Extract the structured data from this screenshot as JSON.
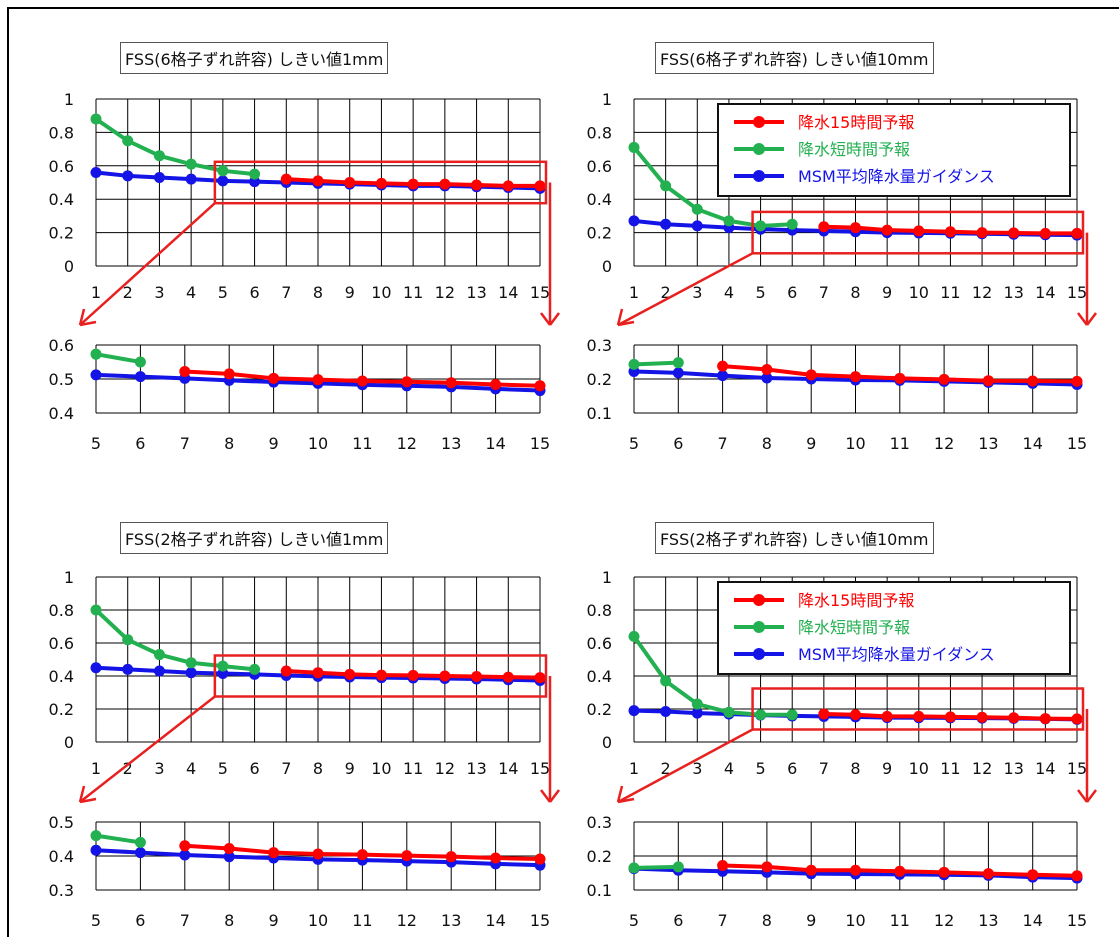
{
  "colors": {
    "red": "#ff0000",
    "green": "#22b050",
    "blue": "#1414e6",
    "zoom": "#e82020"
  },
  "legend_entries": [
    "降水15時間予報",
    "降水短時間予報",
    "MSM平均降水量ガイダンス"
  ],
  "chart_data": [
    {
      "type": "line",
      "title": "FSS(6格子ずれ許容) しきい値1mm",
      "main": {
        "x": [
          1,
          2,
          3,
          4,
          5,
          6,
          7,
          8,
          9,
          10,
          11,
          12,
          13,
          14,
          15
        ],
        "ylim": [
          0,
          1
        ],
        "yticks": [
          "0",
          "0.2",
          "0.4",
          "0.6",
          "0.8",
          "1"
        ],
        "xticks": [
          "1",
          "2",
          "3",
          "4",
          "5",
          "6",
          "7",
          "8",
          "9",
          "10",
          "11",
          "12",
          "13",
          "14",
          "15"
        ],
        "grid": true,
        "legend": null,
        "series": [
          {
            "name": "降水15時間予報",
            "color": "red",
            "x": [
              7,
              8,
              9,
              10,
              11,
              12,
              13,
              14,
              15
            ],
            "values": [
              0.52,
              0.51,
              0.5,
              0.495,
              0.49,
              0.49,
              0.485,
              0.48,
              0.48
            ]
          },
          {
            "name": "降水短時間予報",
            "color": "green",
            "x": [
              1,
              2,
              3,
              4,
              5,
              6
            ],
            "values": [
              0.88,
              0.75,
              0.66,
              0.61,
              0.57,
              0.55
            ]
          },
          {
            "name": "MSM平均降水量ガイダンス",
            "color": "blue",
            "x": [
              1,
              2,
              3,
              4,
              5,
              6,
              7,
              8,
              9,
              10,
              11,
              12,
              13,
              14,
              15
            ],
            "values": [
              0.56,
              0.54,
              0.53,
              0.52,
              0.51,
              0.505,
              0.5,
              0.495,
              0.49,
              0.485,
              0.48,
              0.48,
              0.475,
              0.47,
              0.465
            ]
          }
        ]
      },
      "zoom": {
        "x": [
          5,
          6,
          7,
          8,
          9,
          10,
          11,
          12,
          13,
          14,
          15
        ],
        "ylim": [
          0.4,
          0.6
        ],
        "yticks": [
          "0.4",
          "0.5",
          "0.6"
        ],
        "xticks": [
          "5",
          "6",
          "7",
          "8",
          "9",
          "10",
          "11",
          "12",
          "13",
          "14",
          "15"
        ],
        "series": [
          {
            "name": "降水15時間予報",
            "color": "red",
            "x": [
              7,
              8,
              9,
              10,
              11,
              12,
              13,
              14,
              15
            ],
            "values": [
              0.522,
              0.515,
              0.502,
              0.498,
              0.494,
              0.492,
              0.489,
              0.484,
              0.48
            ]
          },
          {
            "name": "降水短時間予報",
            "color": "green",
            "x": [
              5,
              6
            ],
            "values": [
              0.573,
              0.55
            ]
          },
          {
            "name": "MSM平均降水量ガイダンス",
            "color": "blue",
            "x": [
              5,
              6,
              7,
              8,
              9,
              10,
              11,
              12,
              13,
              14,
              15
            ],
            "values": [
              0.512,
              0.507,
              0.502,
              0.496,
              0.491,
              0.487,
              0.483,
              0.48,
              0.477,
              0.471,
              0.466
            ]
          }
        ]
      }
    },
    {
      "type": "line",
      "title": "FSS(6格子ずれ許容) しきい値10mm",
      "main": {
        "x": [
          1,
          2,
          3,
          4,
          5,
          6,
          7,
          8,
          9,
          10,
          11,
          12,
          13,
          14,
          15
        ],
        "ylim": [
          0,
          1
        ],
        "yticks": [
          "0",
          "0.2",
          "0.4",
          "0.6",
          "0.8",
          "1"
        ],
        "xticks": [
          "1",
          "2",
          "3",
          "4",
          "5",
          "6",
          "7",
          "8",
          "9",
          "10",
          "11",
          "12",
          "13",
          "14",
          "15"
        ],
        "grid": true,
        "legend": "top-right",
        "series": [
          {
            "name": "降水15時間予報",
            "color": "red",
            "x": [
              7,
              8,
              9,
              10,
              11,
              12,
              13,
              14,
              15
            ],
            "values": [
              0.235,
              0.23,
              0.215,
              0.21,
              0.205,
              0.2,
              0.198,
              0.195,
              0.195
            ]
          },
          {
            "name": "降水短時間予報",
            "color": "green",
            "x": [
              1,
              2,
              3,
              4,
              5,
              6
            ],
            "values": [
              0.71,
              0.48,
              0.34,
              0.27,
              0.24,
              0.25
            ]
          },
          {
            "name": "MSM平均降水量ガイダンス",
            "color": "blue",
            "x": [
              1,
              2,
              3,
              4,
              5,
              6,
              7,
              8,
              9,
              10,
              11,
              12,
              13,
              14,
              15
            ],
            "values": [
              0.27,
              0.25,
              0.24,
              0.23,
              0.22,
              0.215,
              0.21,
              0.205,
              0.2,
              0.198,
              0.196,
              0.193,
              0.19,
              0.187,
              0.185
            ]
          }
        ]
      },
      "zoom": {
        "x": [
          5,
          6,
          7,
          8,
          9,
          10,
          11,
          12,
          13,
          14,
          15
        ],
        "ylim": [
          0.1,
          0.3
        ],
        "yticks": [
          "0.1",
          "0.2",
          "0.3"
        ],
        "xticks": [
          "5",
          "6",
          "7",
          "8",
          "9",
          "10",
          "11",
          "12",
          "13",
          "14",
          "15"
        ],
        "series": [
          {
            "name": "降水15時間予報",
            "color": "red",
            "x": [
              7,
              8,
              9,
              10,
              11,
              12,
              13,
              14,
              15
            ],
            "values": [
              0.238,
              0.228,
              0.212,
              0.207,
              0.202,
              0.199,
              0.195,
              0.194,
              0.193
            ]
          },
          {
            "name": "降水短時間予報",
            "color": "green",
            "x": [
              5,
              6
            ],
            "values": [
              0.243,
              0.248
            ]
          },
          {
            "name": "MSM平均降水量ガイダンス",
            "color": "blue",
            "x": [
              5,
              6,
              7,
              8,
              9,
              10,
              11,
              12,
              13,
              14,
              15
            ],
            "values": [
              0.222,
              0.218,
              0.21,
              0.203,
              0.2,
              0.197,
              0.196,
              0.193,
              0.19,
              0.187,
              0.184
            ]
          }
        ]
      }
    },
    {
      "type": "line",
      "title": "FSS(2格子ずれ許容) しきい値1mm",
      "main": {
        "x": [
          1,
          2,
          3,
          4,
          5,
          6,
          7,
          8,
          9,
          10,
          11,
          12,
          13,
          14,
          15
        ],
        "ylim": [
          0,
          1
        ],
        "yticks": [
          "0",
          "0.2",
          "0.4",
          "0.6",
          "0.8",
          "1"
        ],
        "xticks": [
          "1",
          "2",
          "3",
          "4",
          "5",
          "6",
          "7",
          "8",
          "9",
          "10",
          "11",
          "12",
          "13",
          "14",
          "15"
        ],
        "grid": true,
        "legend": null,
        "series": [
          {
            "name": "降水15時間予報",
            "color": "red",
            "x": [
              7,
              8,
              9,
              10,
              11,
              12,
              13,
              14,
              15
            ],
            "values": [
              0.43,
              0.42,
              0.41,
              0.405,
              0.404,
              0.4,
              0.397,
              0.393,
              0.39
            ]
          },
          {
            "name": "降水短時間予報",
            "color": "green",
            "x": [
              1,
              2,
              3,
              4,
              5,
              6
            ],
            "values": [
              0.8,
              0.62,
              0.53,
              0.48,
              0.46,
              0.44
            ]
          },
          {
            "name": "MSM平均降水量ガイダンス",
            "color": "blue",
            "x": [
              1,
              2,
              3,
              4,
              5,
              6,
              7,
              8,
              9,
              10,
              11,
              12,
              13,
              14,
              15
            ],
            "values": [
              0.45,
              0.44,
              0.43,
              0.42,
              0.415,
              0.41,
              0.403,
              0.398,
              0.394,
              0.39,
              0.388,
              0.385,
              0.382,
              0.377,
              0.373
            ]
          }
        ]
      },
      "zoom": {
        "x": [
          5,
          6,
          7,
          8,
          9,
          10,
          11,
          12,
          13,
          14,
          15
        ],
        "ylim": [
          0.3,
          0.5
        ],
        "yticks": [
          "0.3",
          "0.4",
          "0.5"
        ],
        "xticks": [
          "5",
          "6",
          "7",
          "8",
          "9",
          "10",
          "11",
          "12",
          "13",
          "14",
          "15"
        ],
        "series": [
          {
            "name": "降水15時間予報",
            "color": "red",
            "x": [
              7,
              8,
              9,
              10,
              11,
              12,
              13,
              14,
              15
            ],
            "values": [
              0.43,
              0.422,
              0.41,
              0.406,
              0.404,
              0.401,
              0.398,
              0.394,
              0.391
            ]
          },
          {
            "name": "降水短時間予報",
            "color": "green",
            "x": [
              5,
              6
            ],
            "values": [
              0.46,
              0.44
            ]
          },
          {
            "name": "MSM平均降水量ガイダンス",
            "color": "blue",
            "x": [
              5,
              6,
              7,
              8,
              9,
              10,
              11,
              12,
              13,
              14,
              15
            ],
            "values": [
              0.417,
              0.41,
              0.403,
              0.398,
              0.394,
              0.39,
              0.388,
              0.385,
              0.382,
              0.377,
              0.373
            ]
          }
        ]
      }
    },
    {
      "type": "line",
      "title": "FSS(2格子ずれ許容) しきい値10mm",
      "main": {
        "x": [
          1,
          2,
          3,
          4,
          5,
          6,
          7,
          8,
          9,
          10,
          11,
          12,
          13,
          14,
          15
        ],
        "ylim": [
          0,
          1
        ],
        "yticks": [
          "0",
          "0.2",
          "0.4",
          "0.6",
          "0.8",
          "1"
        ],
        "xticks": [
          "1",
          "2",
          "3",
          "4",
          "5",
          "6",
          "7",
          "8",
          "9",
          "10",
          "11",
          "12",
          "13",
          "14",
          "15"
        ],
        "grid": true,
        "legend": "top-right",
        "series": [
          {
            "name": "降水15時間予報",
            "color": "red",
            "x": [
              7,
              8,
              9,
              10,
              11,
              12,
              13,
              14,
              15
            ],
            "values": [
              0.17,
              0.165,
              0.155,
              0.155,
              0.152,
              0.15,
              0.147,
              0.142,
              0.14
            ]
          },
          {
            "name": "降水短時間予報",
            "color": "green",
            "x": [
              1,
              2,
              3,
              4,
              5,
              6
            ],
            "values": [
              0.64,
              0.37,
              0.23,
              0.18,
              0.165,
              0.165
            ]
          },
          {
            "name": "MSM平均降水量ガイダンス",
            "color": "blue",
            "x": [
              1,
              2,
              3,
              4,
              5,
              6,
              7,
              8,
              9,
              10,
              11,
              12,
              13,
              14,
              15
            ],
            "values": [
              0.19,
              0.185,
              0.175,
              0.17,
              0.163,
              0.158,
              0.155,
              0.152,
              0.148,
              0.147,
              0.146,
              0.145,
              0.143,
              0.14,
              0.137
            ]
          }
        ]
      },
      "zoom": {
        "x": [
          5,
          6,
          7,
          8,
          9,
          10,
          11,
          12,
          13,
          14,
          15
        ],
        "ylim": [
          0.1,
          0.3
        ],
        "yticks": [
          "0.1",
          "0.2",
          "0.3"
        ],
        "xticks": [
          "5",
          "6",
          "7",
          "8",
          "9",
          "10",
          "11",
          "12",
          "13",
          "14",
          "15"
        ],
        "series": [
          {
            "name": "降水15時間予報",
            "color": "red",
            "x": [
              7,
              8,
              9,
              10,
              11,
              12,
              13,
              14,
              15
            ],
            "values": [
              0.172,
              0.168,
              0.158,
              0.158,
              0.155,
              0.152,
              0.148,
              0.145,
              0.142
            ]
          },
          {
            "name": "降水短時間予報",
            "color": "green",
            "x": [
              5,
              6
            ],
            "values": [
              0.165,
              0.168
            ]
          },
          {
            "name": "MSM平均降水量ガイダンス",
            "color": "blue",
            "x": [
              5,
              6,
              7,
              8,
              9,
              10,
              11,
              12,
              13,
              14,
              15
            ],
            "values": [
              0.163,
              0.158,
              0.155,
              0.152,
              0.148,
              0.147,
              0.146,
              0.145,
              0.143,
              0.138,
              0.135
            ]
          }
        ]
      }
    }
  ]
}
